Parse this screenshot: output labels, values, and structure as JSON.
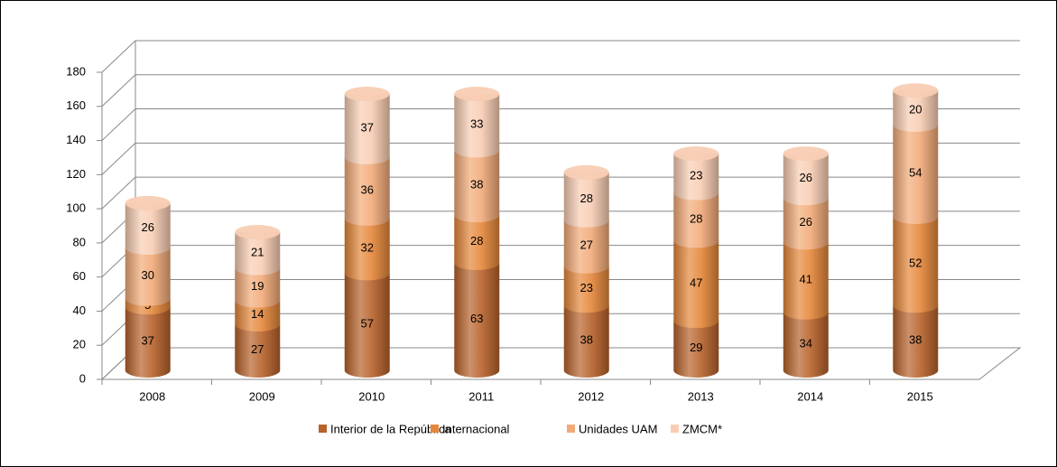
{
  "chart_data": {
    "type": "bar3d-stacked",
    "categories": [
      "2008",
      "2009",
      "2010",
      "2011",
      "2012",
      "2013",
      "2014",
      "2015"
    ],
    "series": [
      {
        "name": "Interior de la República",
        "color": "#b8622b",
        "values": [
          37,
          27,
          57,
          63,
          38,
          29,
          34,
          38
        ]
      },
      {
        "name": "Internacional",
        "color": "#e5873a",
        "values": [
          5,
          14,
          32,
          28,
          23,
          47,
          41,
          52
        ]
      },
      {
        "name": "Unidades UAM",
        "color": "#f2aa78",
        "values": [
          30,
          19,
          36,
          38,
          27,
          28,
          26,
          54
        ]
      },
      {
        "name": "ZMCM*",
        "color": "#f8cdb3",
        "values": [
          26,
          21,
          37,
          33,
          28,
          23,
          26,
          20
        ]
      }
    ],
    "ylim": [
      0,
      180
    ],
    "yticks": [
      0,
      20,
      40,
      60,
      80,
      100,
      120,
      140,
      160,
      180
    ],
    "grid": true,
    "legend": "bottom"
  }
}
